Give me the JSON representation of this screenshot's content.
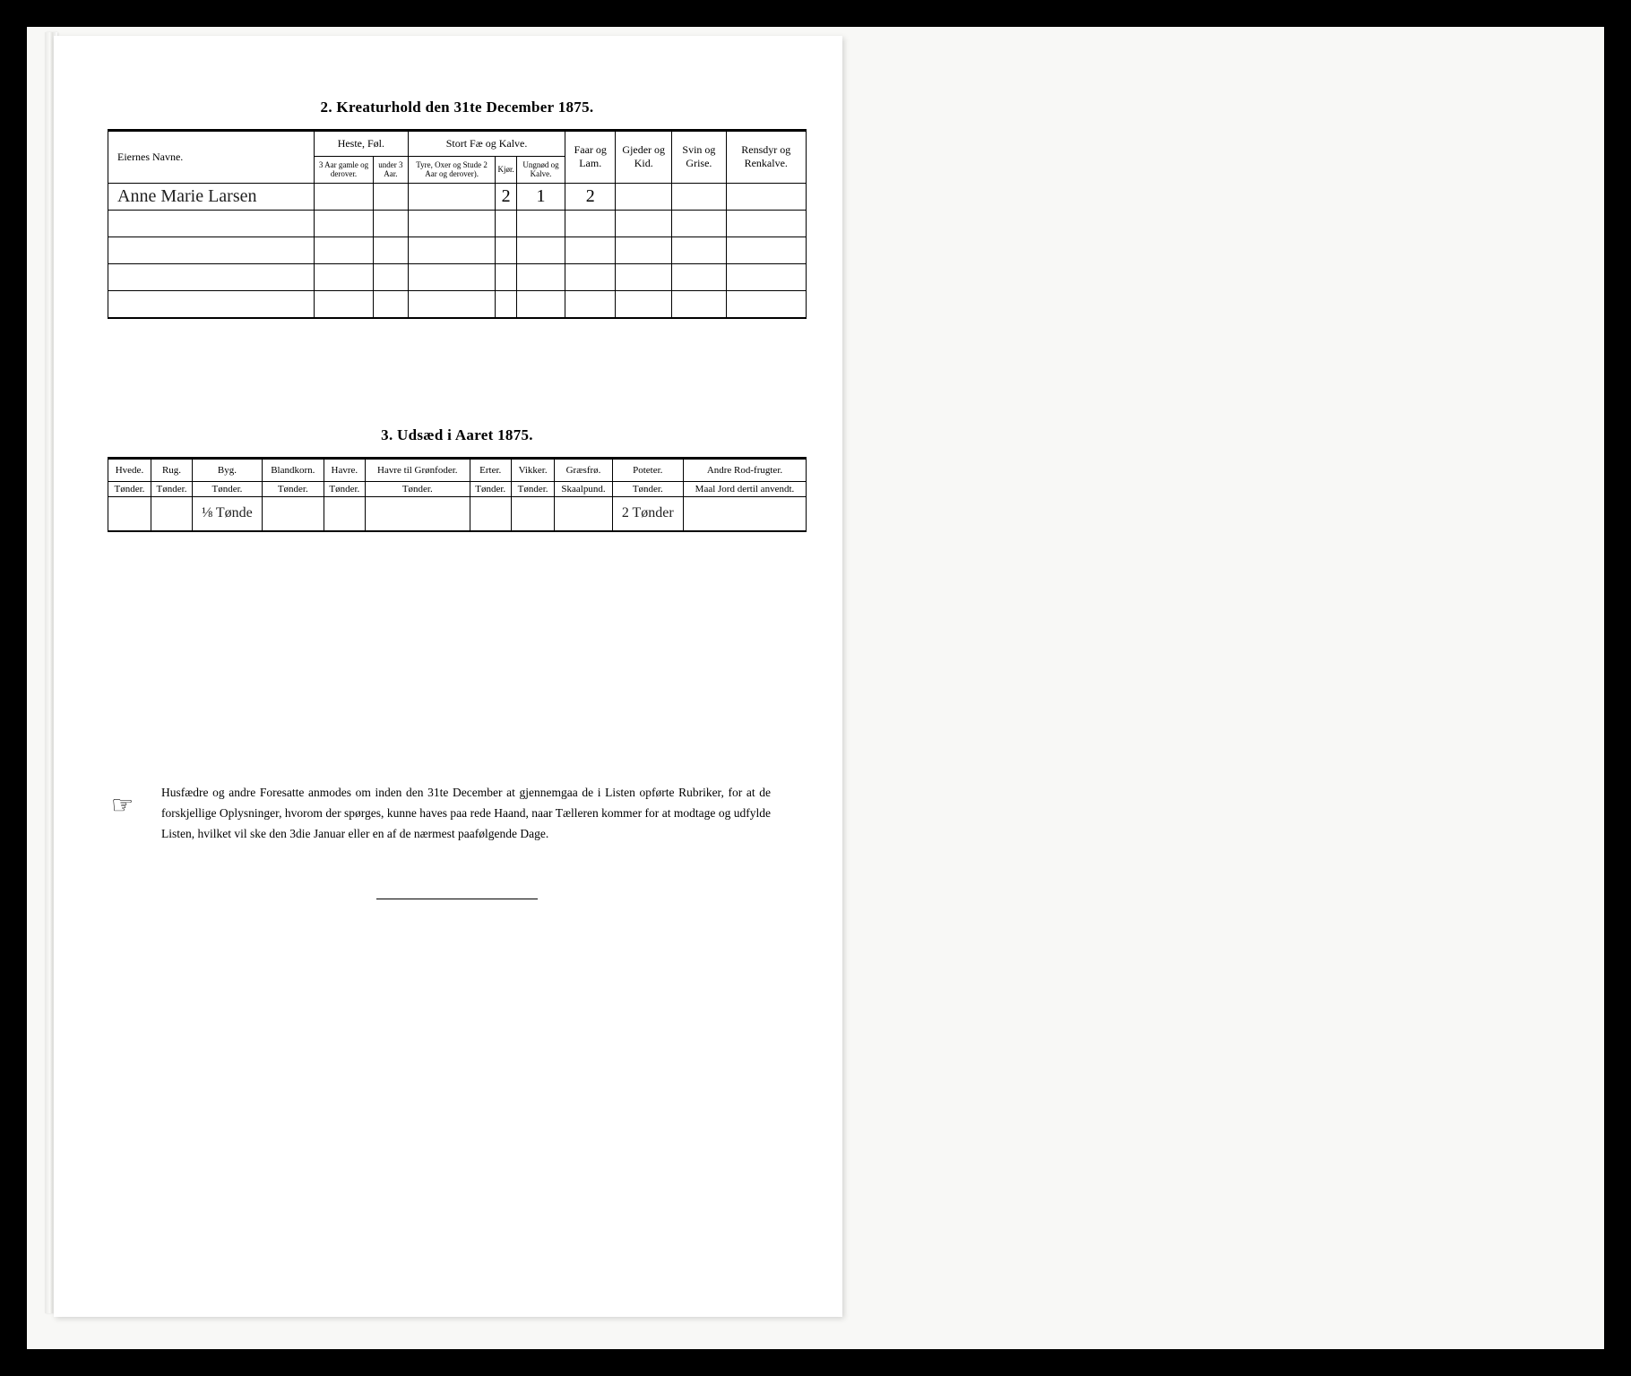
{
  "section2": {
    "title": "2.   Kreaturhold den 31te December 1875.",
    "columns": {
      "name": "Eiernes Navne.",
      "heste": "Heste, Føl.",
      "heste_sub1": "3 Aar gamle og derover.",
      "heste_sub2": "under 3 Aar.",
      "stort": "Stort Fæ og Kalve.",
      "stort_sub1": "Tyre, Oxer og Stude 2 Aar og derover).",
      "stort_sub2": "Kjør.",
      "stort_sub3": "Ungnød og Kalve.",
      "faar": "Faar og Lam.",
      "gjeder": "Gjeder og Kid.",
      "svin": "Svin og Grise.",
      "ren": "Rensdyr og Renkalve."
    },
    "rows": [
      {
        "name": "Anne Marie Larsen",
        "v": [
          "",
          "",
          "",
          "2",
          "1",
          "2",
          "",
          "",
          ""
        ]
      },
      {
        "name": "",
        "v": [
          "",
          "",
          "",
          "",
          "",
          "",
          "",
          "",
          ""
        ]
      },
      {
        "name": "",
        "v": [
          "",
          "",
          "",
          "",
          "",
          "",
          "",
          "",
          ""
        ]
      },
      {
        "name": "",
        "v": [
          "",
          "",
          "",
          "",
          "",
          "",
          "",
          "",
          ""
        ]
      },
      {
        "name": "",
        "v": [
          "",
          "",
          "",
          "",
          "",
          "",
          "",
          "",
          ""
        ]
      }
    ]
  },
  "section3": {
    "title": "3.   Udsæd i Aaret 1875.",
    "columns": [
      {
        "label": "Hvede.",
        "unit": "Tønder."
      },
      {
        "label": "Rug.",
        "unit": "Tønder."
      },
      {
        "label": "Byg.",
        "unit": "Tønder."
      },
      {
        "label": "Blandkorn.",
        "unit": "Tønder."
      },
      {
        "label": "Havre.",
        "unit": "Tønder."
      },
      {
        "label": "Havre til Grønfoder.",
        "unit": "Tønder."
      },
      {
        "label": "Erter.",
        "unit": "Tønder."
      },
      {
        "label": "Vikker.",
        "unit": "Tønder."
      },
      {
        "label": "Græsfrø.",
        "unit": "Skaalpund."
      },
      {
        "label": "Poteter.",
        "unit": "Tønder."
      },
      {
        "label": "Andre Rod-frugter.",
        "unit": "Maal Jord dertil anvendt."
      }
    ],
    "row": [
      "",
      "",
      "⅛ Tønde",
      "",
      "",
      "",
      "",
      "",
      "",
      "2 Tønder",
      ""
    ]
  },
  "footnote": {
    "icon": "☞",
    "text": "Husfædre og andre Foresatte anmodes om inden den 31te December at gjennemgaa de i Listen opførte Rubriker, for at de forskjellige Oplysninger, hvorom der spørges, kunne haves paa rede Haand, naar Tælleren kommer for at modtage og udfylde Listen, hvilket vil ske den 3die Januar eller en af de nærmest paafølgende Dage."
  }
}
